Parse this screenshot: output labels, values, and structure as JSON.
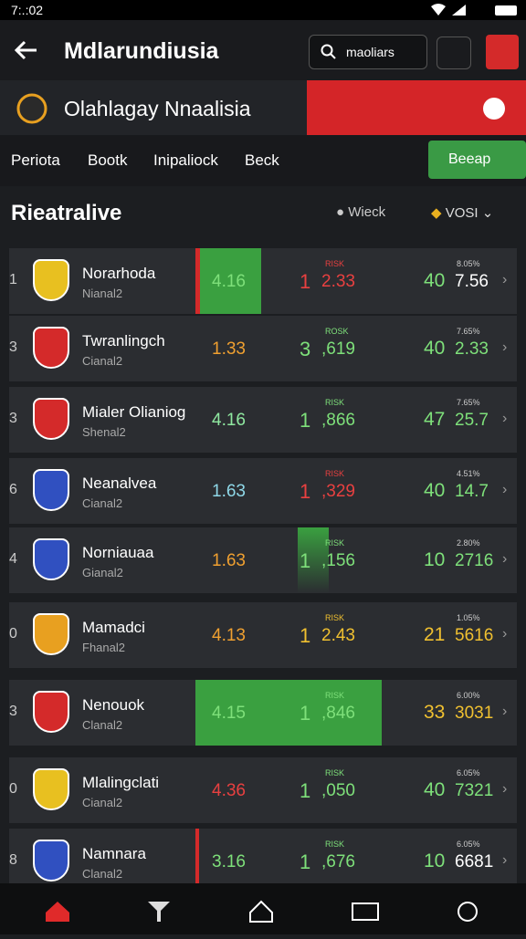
{
  "status_bar": {
    "time": "7:.:02"
  },
  "header": {
    "title": "Mdlarundiusia",
    "search": "maoliars"
  },
  "banner": {
    "title": "Olahlagay Nnaalisia"
  },
  "tabs": {
    "items": [
      "Periota",
      "Bootk",
      "Inipaliock",
      "Beck"
    ],
    "button": "Beeap"
  },
  "section": {
    "title": "Rieatralive",
    "filter1": "Wieck",
    "filter2": "VOSI"
  },
  "rows": [
    [
      "1",
      "Norarhoda",
      "Nianal2",
      "4.16",
      "1",
      "RISK",
      "2.33",
      "40",
      "8.05%",
      "7.56"
    ],
    [
      "3",
      "Twranlingch",
      "Cianal2",
      "1.33",
      "3",
      "ROSK",
      ",619",
      "40",
      "7.65%",
      "2.33"
    ],
    [
      "3",
      "Mialer Olianiog",
      "Shenal2",
      "4.16",
      "1",
      "RISK",
      ",866",
      "47",
      "7.65%",
      "25.7"
    ],
    [
      "6",
      "Neanalvea",
      "Cianal2",
      "1.63",
      "1",
      "RISK",
      ",329",
      "40",
      "4.51%",
      "14.7"
    ],
    [
      "4",
      "Norniauaa",
      "Gianal2",
      "1.63",
      "1",
      "RISK",
      ",156",
      "10",
      "2.80%",
      "2716"
    ],
    [
      "0",
      "Mamadci",
      "Fhanal2",
      "4.13",
      "1",
      "RISK",
      "2.43",
      "21",
      "1.05%",
      "5616"
    ],
    [
      "3",
      "Nenouok",
      "Clanal2",
      "4.15",
      "1",
      "RISK",
      ",846",
      "33",
      "6.00%",
      "3031"
    ],
    [
      "0",
      "Mlalingclati",
      "Cianal2",
      "4.36",
      "1",
      "RISK",
      ",050",
      "40",
      "6.05%",
      "7321"
    ],
    [
      "8",
      "Namnara",
      "Clanal2",
      "3.16",
      "1",
      "RISK",
      ",676",
      "10",
      "6.05%",
      "6681"
    ]
  ]
}
